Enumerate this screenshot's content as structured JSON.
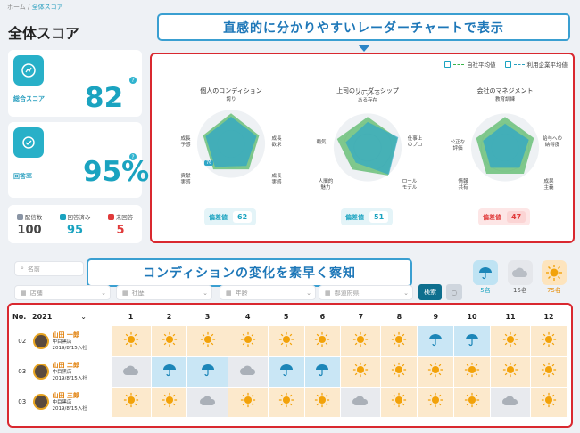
{
  "breadcrumb": {
    "home": "ホーム",
    "sep": "/",
    "current": "全体スコア"
  },
  "page_title": "全体スコア",
  "kpi": {
    "total_label": "総合スコア",
    "total_value": "82",
    "resp_label": "回答率",
    "resp_value": "95%"
  },
  "stats": [
    {
      "label": "配信数",
      "value": "100",
      "color": "#444444"
    },
    {
      "label": "回答済み",
      "value": "95",
      "color": "#1aa3c0"
    },
    {
      "label": "未回答",
      "value": "5",
      "color": "#e03a3a"
    }
  ],
  "callout_top": "直感的に分かりやすいレーダーチャートで表示",
  "callout_mid": "コンディションの変化を素早く察知",
  "legend": {
    "own": "自社平均値",
    "industry": "利用企業平均値"
  },
  "charts": [
    {
      "title": "個人のコンディション",
      "axes": [
        "誇り",
        "成長\n欲求",
        "成長\n実感",
        "貢献\n実感",
        "成長\n予感"
      ],
      "badge_label": "偏差値",
      "badge_value": "62",
      "badge_color": "#1aa3c0",
      "tag": "76"
    },
    {
      "title": "上司のリーダーシップ",
      "axes": [
        "メリットの\nある存在",
        "仕事上\nのプロ",
        "ロール\nモデル",
        "人間的\n魅力",
        "覇気"
      ],
      "badge_label": "偏差値",
      "badge_value": "51",
      "badge_color": "#1aa3c0"
    },
    {
      "title": "会社のマネジメント",
      "axes": [
        "教育訓練",
        "給与への\n納得度",
        "成果\n主義",
        "情報\n共有",
        "公正な\n評価"
      ],
      "badge_label": "偏差値",
      "badge_value": "47",
      "badge_color": "#e03a3a"
    }
  ],
  "filters": {
    "name": "名前",
    "store": "店舗",
    "company": "社歴",
    "age": "年齢",
    "pref": "都道府県",
    "search": "検索"
  },
  "weather_summary": [
    {
      "icon": "rain-icon",
      "count": "5名",
      "color": "#1aa3c0"
    },
    {
      "icon": "cloud-icon",
      "count": "15名",
      "color": "#555555"
    },
    {
      "icon": "sun-icon",
      "count": "75名",
      "color": "#e58a00"
    }
  ],
  "table": {
    "no_label": "No.",
    "year": "2021",
    "months": [
      "1",
      "2",
      "3",
      "4",
      "5",
      "6",
      "7",
      "8",
      "9",
      "10",
      "11",
      "12"
    ],
    "rows": [
      {
        "id": "02",
        "name": "山田 一郎",
        "store": "中目黒店",
        "joined": "2019/8/15入社",
        "weather": [
          "sun",
          "sun",
          "sun",
          "sun",
          "sun",
          "sun",
          "sun",
          "sun",
          "rain",
          "rain",
          "sun",
          "sun"
        ]
      },
      {
        "id": "03",
        "name": "山田 二郎",
        "store": "中目黒店",
        "joined": "2019/8/15入社",
        "weather": [
          "cloud",
          "rain",
          "rain",
          "cloud",
          "rain",
          "rain",
          "sun",
          "sun",
          "sun",
          "sun",
          "sun",
          "sun"
        ]
      },
      {
        "id": "03",
        "name": "山田 三郎",
        "store": "中目黒店",
        "joined": "2019/8/15入社",
        "weather": [
          "sun",
          "sun",
          "cloud",
          "sun",
          "sun",
          "sun",
          "cloud",
          "sun",
          "sun",
          "sun",
          "cloud",
          "sun"
        ]
      }
    ]
  }
}
